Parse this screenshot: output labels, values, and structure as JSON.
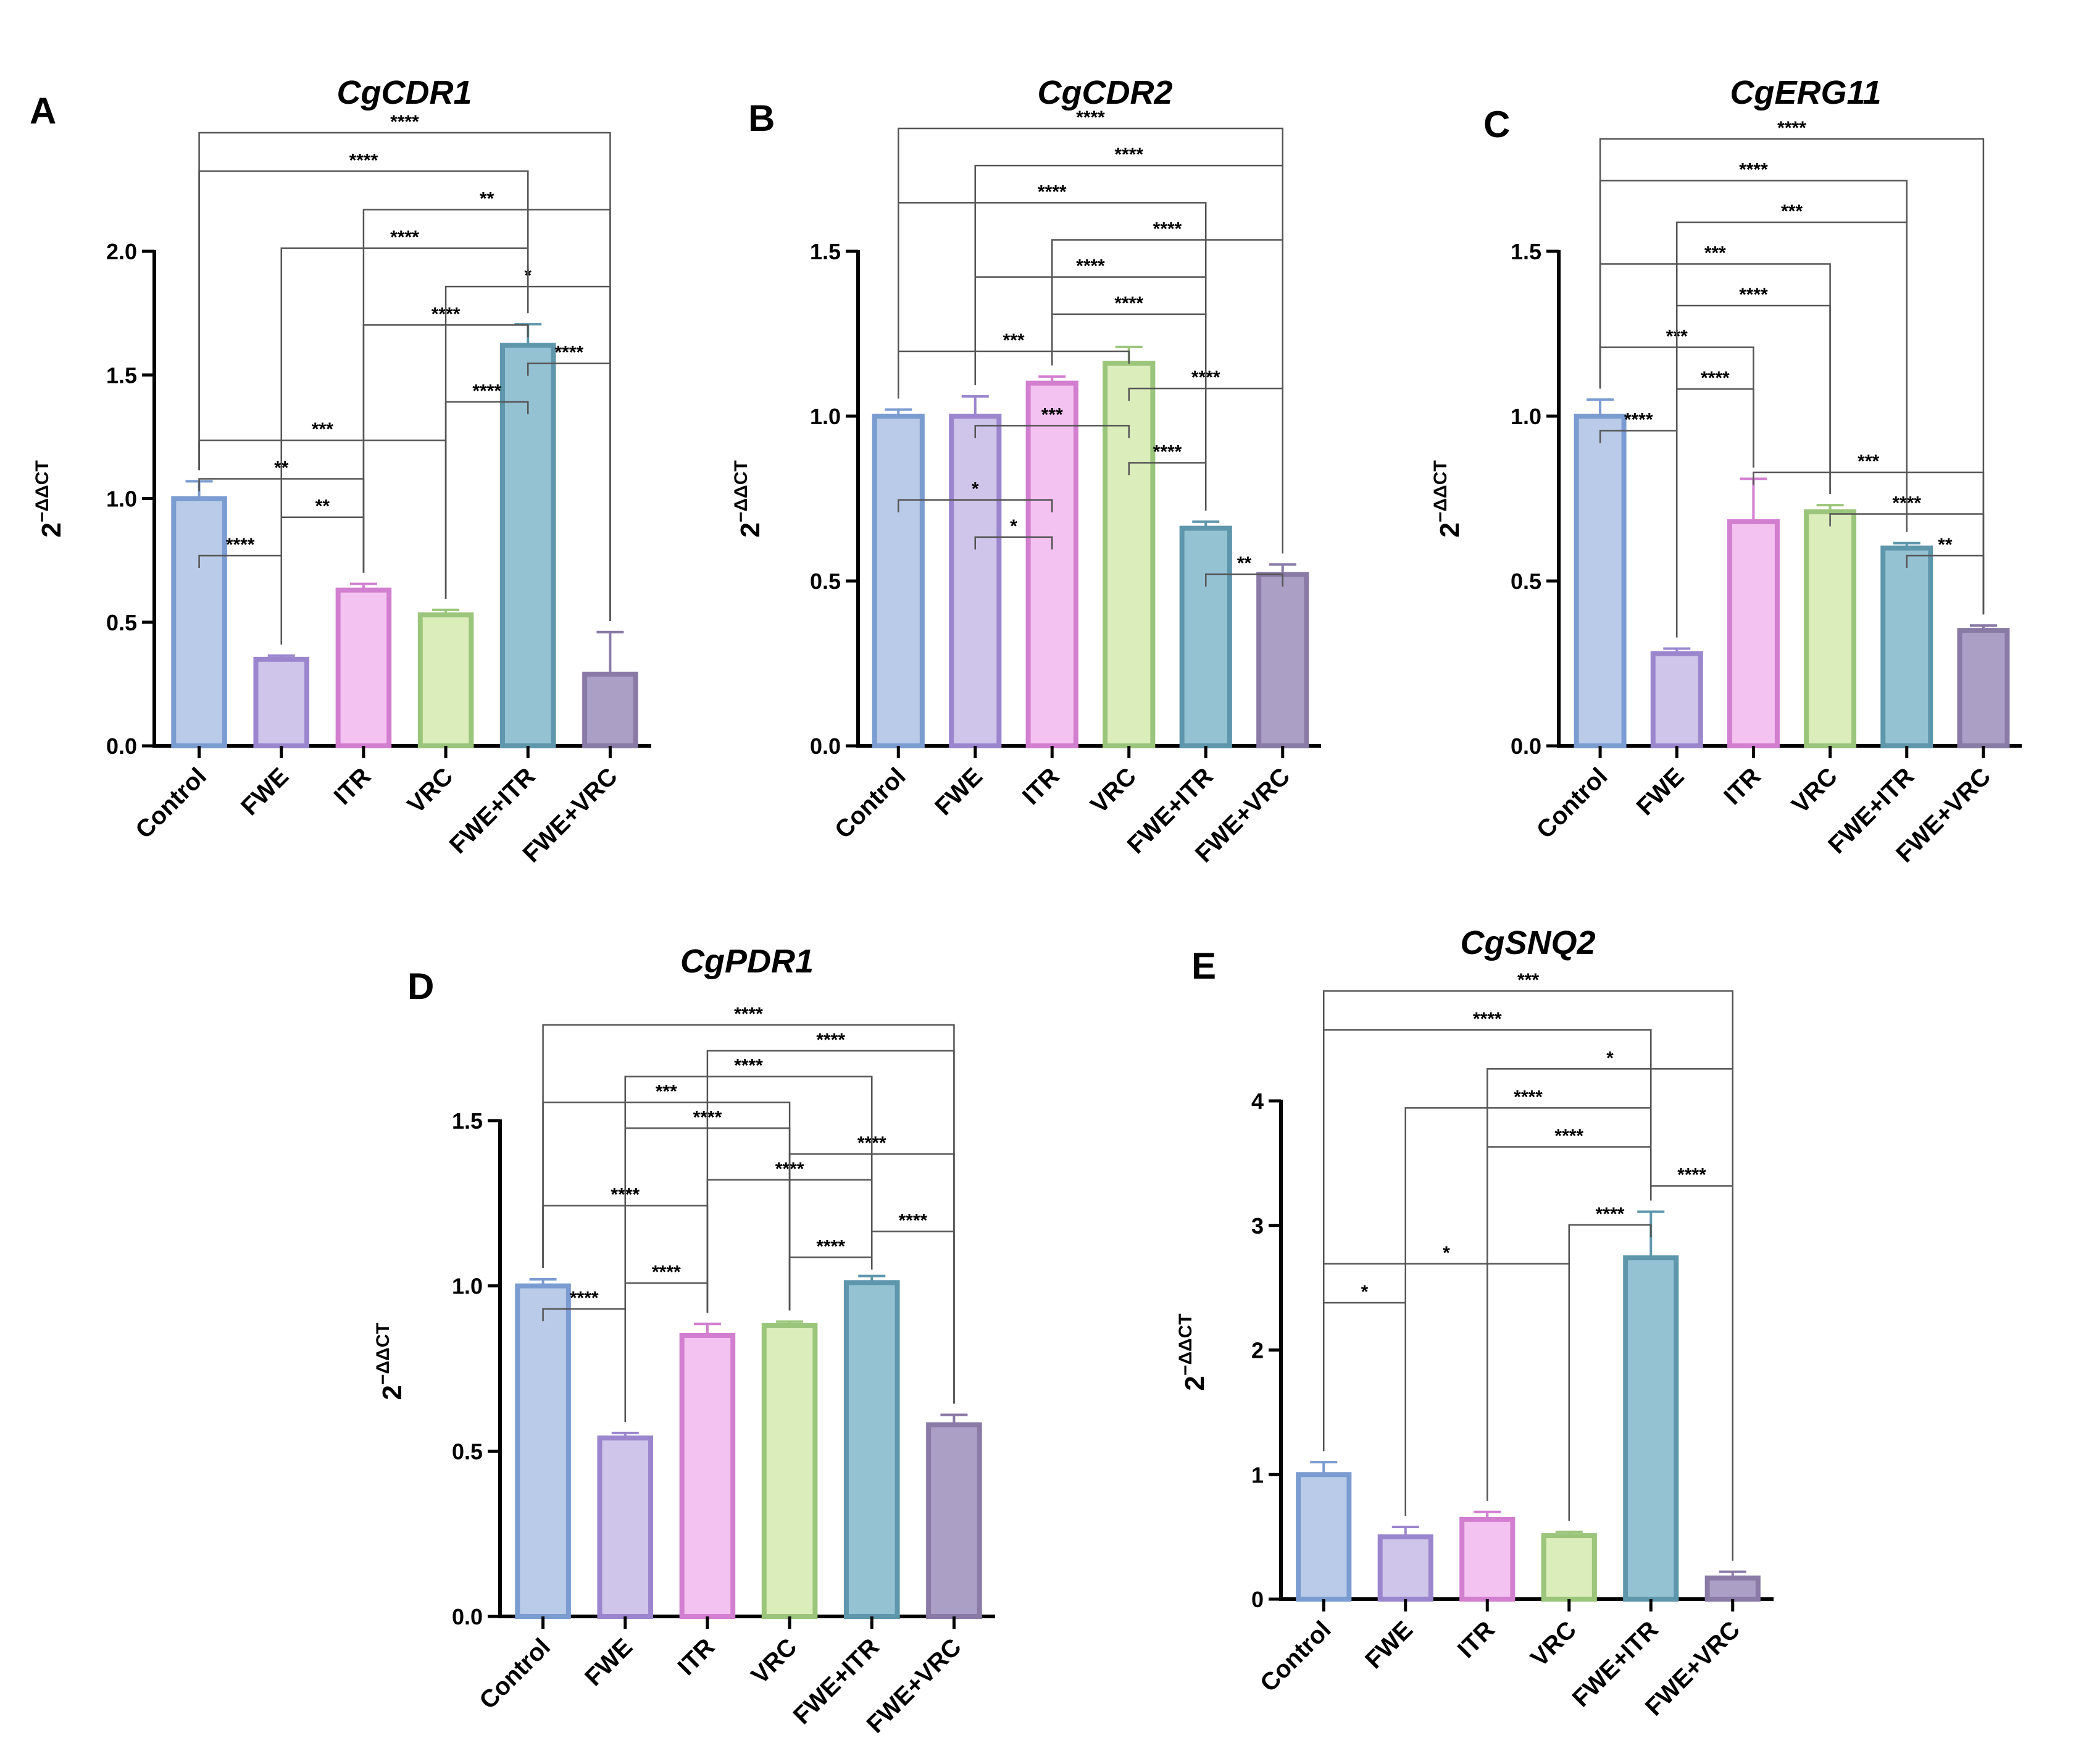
{
  "figure": {
    "description_free": true
  },
  "colors": {
    "Control": {
      "fill": "#b9cbe8",
      "stroke": "#7b9cd0"
    },
    "FWE": {
      "fill": "#cfc4ea",
      "stroke": "#9b86ce"
    },
    "ITR": {
      "fill": "#f4c2f0",
      "stroke": "#d27fd0"
    },
    "VRC": {
      "fill": "#dbedbb",
      "stroke": "#9bc57a"
    },
    "FWE+ITR": {
      "fill": "#95c2d2",
      "stroke": "#5e97ab"
    },
    "FWE+VRC": {
      "fill": "#ab9fc6",
      "stroke": "#8a7aa6"
    }
  },
  "chart_data": [
    {
      "panel": "A",
      "title": "CgCDR1",
      "type": "bar",
      "ylabel": "2",
      "ylabel_sup": "−ΔΔCT",
      "categories": [
        "Control",
        "FWE",
        "ITR",
        "VRC",
        "FWE+ITR",
        "FWE+VRC"
      ],
      "values": [
        1.0,
        0.35,
        0.63,
        0.53,
        1.62,
        0.29
      ],
      "errors": [
        0.07,
        0.015,
        0.025,
        0.02,
        0.085,
        0.17
      ],
      "ylim": [
        0,
        2.0
      ],
      "yticks": [
        "0.0",
        "0.5",
        "1.0",
        "1.5",
        "2.0"
      ],
      "yticks_values": [
        0,
        0.5,
        1.0,
        1.5,
        2.0
      ],
      "comparisons": [
        {
          "from": "Control",
          "to": "FWE",
          "label": "****"
        },
        {
          "from": "FWE",
          "to": "ITR",
          "label": "**"
        },
        {
          "from": "Control",
          "to": "ITR",
          "label": "**"
        },
        {
          "from": "Control",
          "to": "VRC",
          "label": "***"
        },
        {
          "from": "VRC",
          "to": "FWE+ITR",
          "label": "****"
        },
        {
          "from": "FWE+ITR",
          "to": "FWE+VRC",
          "label": "****"
        },
        {
          "from": "ITR",
          "to": "FWE+ITR",
          "label": "****"
        },
        {
          "from": "VRC",
          "to": "FWE+VRC",
          "label": "*"
        },
        {
          "from": "FWE",
          "to": "FWE+ITR",
          "label": "****"
        },
        {
          "from": "ITR",
          "to": "FWE+VRC",
          "label": "**"
        },
        {
          "from": "Control",
          "to": "FWE+ITR",
          "label": "****"
        },
        {
          "from": "Control",
          "to": "FWE+VRC",
          "label": "****"
        }
      ]
    },
    {
      "panel": "B",
      "title": "CgCDR2",
      "type": "bar",
      "ylabel": "2",
      "ylabel_sup": "−ΔΔCT",
      "categories": [
        "Control",
        "FWE",
        "ITR",
        "VRC",
        "FWE+ITR",
        "FWE+VRC"
      ],
      "values": [
        1.0,
        1.0,
        1.1,
        1.16,
        0.66,
        0.52
      ],
      "errors": [
        0.02,
        0.06,
        0.02,
        0.05,
        0.02,
        0.03
      ],
      "ylim": [
        0,
        1.5
      ],
      "yticks": [
        "0.0",
        "0.5",
        "1.0",
        "1.5"
      ],
      "yticks_values": [
        0,
        0.5,
        1.0,
        1.5
      ],
      "comparisons": [
        {
          "from": "FWE+ITR",
          "to": "FWE+VRC",
          "label": "**"
        },
        {
          "from": "FWE",
          "to": "ITR",
          "label": "*"
        },
        {
          "from": "Control",
          "to": "ITR",
          "label": "*"
        },
        {
          "from": "VRC",
          "to": "FWE+ITR",
          "label": "****"
        },
        {
          "from": "FWE",
          "to": "VRC",
          "label": "***"
        },
        {
          "from": "VRC",
          "to": "FWE+VRC",
          "label": "****"
        },
        {
          "from": "Control",
          "to": "VRC",
          "label": "***"
        },
        {
          "from": "ITR",
          "to": "FWE+ITR",
          "label": "****"
        },
        {
          "from": "FWE",
          "to": "FWE+ITR",
          "label": "****"
        },
        {
          "from": "ITR",
          "to": "FWE+VRC",
          "label": "****"
        },
        {
          "from": "Control",
          "to": "FWE+ITR",
          "label": "****"
        },
        {
          "from": "FWE",
          "to": "FWE+VRC",
          "label": "****"
        },
        {
          "from": "Control",
          "to": "FWE+VRC",
          "label": "****"
        }
      ]
    },
    {
      "panel": "C",
      "title": "CgERG11",
      "type": "bar",
      "ylabel": "2",
      "ylabel_sup": "−ΔΔCT",
      "categories": [
        "Control",
        "FWE",
        "ITR",
        "VRC",
        "FWE+ITR",
        "FWE+VRC"
      ],
      "values": [
        1.0,
        0.28,
        0.68,
        0.71,
        0.6,
        0.35
      ],
      "errors": [
        0.05,
        0.015,
        0.13,
        0.02,
        0.015,
        0.015
      ],
      "ylim": [
        0,
        1.5
      ],
      "yticks": [
        "0.0",
        "0.5",
        "1.0",
        "1.5"
      ],
      "yticks_values": [
        0,
        0.5,
        1.0,
        1.5
      ],
      "comparisons": [
        {
          "from": "FWE+ITR",
          "to": "FWE+VRC",
          "label": "**"
        },
        {
          "from": "VRC",
          "to": "FWE+VRC",
          "label": "****"
        },
        {
          "from": "ITR",
          "to": "FWE+VRC",
          "label": "***"
        },
        {
          "from": "Control",
          "to": "FWE",
          "label": "****"
        },
        {
          "from": "FWE",
          "to": "ITR",
          "label": "****"
        },
        {
          "from": "Control",
          "to": "ITR",
          "label": "***"
        },
        {
          "from": "FWE",
          "to": "VRC",
          "label": "****"
        },
        {
          "from": "Control",
          "to": "VRC",
          "label": "***"
        },
        {
          "from": "FWE",
          "to": "FWE+ITR",
          "label": "***"
        },
        {
          "from": "Control",
          "to": "FWE+ITR",
          "label": "****"
        },
        {
          "from": "Control",
          "to": "FWE+VRC",
          "label": "****"
        }
      ]
    },
    {
      "panel": "D",
      "title": "CgPDR1",
      "type": "bar",
      "ylabel": "2",
      "ylabel_sup": "−ΔΔCT",
      "categories": [
        "Control",
        "FWE",
        "ITR",
        "VRC",
        "FWE+ITR",
        "FWE+VRC"
      ],
      "values": [
        1.0,
        0.54,
        0.85,
        0.88,
        1.01,
        0.58
      ],
      "errors": [
        0.02,
        0.015,
        0.035,
        0.012,
        0.02,
        0.03
      ],
      "ylim": [
        0,
        1.5
      ],
      "yticks": [
        "0.0",
        "0.5",
        "1.0",
        "1.5"
      ],
      "yticks_values": [
        0,
        0.5,
        1.0,
        1.5
      ],
      "comparisons": [
        {
          "from": "Control",
          "to": "FWE",
          "label": "****"
        },
        {
          "from": "FWE",
          "to": "ITR",
          "label": "****"
        },
        {
          "from": "VRC",
          "to": "FWE+ITR",
          "label": "****"
        },
        {
          "from": "FWE+ITR",
          "to": "FWE+VRC",
          "label": "****"
        },
        {
          "from": "Control",
          "to": "ITR",
          "label": "****"
        },
        {
          "from": "ITR",
          "to": "FWE+ITR",
          "label": "****"
        },
        {
          "from": "VRC",
          "to": "FWE+VRC",
          "label": "****"
        },
        {
          "from": "FWE",
          "to": "VRC",
          "label": "****"
        },
        {
          "from": "Control",
          "to": "VRC",
          "label": "***"
        },
        {
          "from": "FWE",
          "to": "FWE+ITR",
          "label": "****"
        },
        {
          "from": "ITR",
          "to": "FWE+VRC",
          "label": "****"
        },
        {
          "from": "Control",
          "to": "FWE+VRC",
          "label": "****"
        }
      ]
    },
    {
      "panel": "E",
      "title": "CgSNQ2",
      "type": "bar",
      "ylabel": "2",
      "ylabel_sup": "−ΔΔCT",
      "categories": [
        "Control",
        "FWE",
        "ITR",
        "VRC",
        "FWE+ITR",
        "FWE+VRC"
      ],
      "values": [
        1.0,
        0.5,
        0.64,
        0.51,
        2.74,
        0.17
      ],
      "errors": [
        0.1,
        0.08,
        0.06,
        0.03,
        0.37,
        0.05
      ],
      "ylim": [
        0,
        4
      ],
      "yticks": [
        "0",
        "1",
        "2",
        "3",
        "4"
      ],
      "yticks_values": [
        0,
        1,
        2,
        3,
        4
      ],
      "comparisons": [
        {
          "from": "Control",
          "to": "FWE",
          "label": "*"
        },
        {
          "from": "Control",
          "to": "VRC",
          "label": "*"
        },
        {
          "from": "VRC",
          "to": "FWE+ITR",
          "label": "****"
        },
        {
          "from": "FWE+ITR",
          "to": "FWE+VRC",
          "label": "****"
        },
        {
          "from": "ITR",
          "to": "FWE+ITR",
          "label": "****"
        },
        {
          "from": "FWE",
          "to": "FWE+ITR",
          "label": "****"
        },
        {
          "from": "ITR",
          "to": "FWE+VRC",
          "label": "*"
        },
        {
          "from": "Control",
          "to": "FWE+ITR",
          "label": "****"
        },
        {
          "from": "Control",
          "to": "FWE+VRC",
          "label": "***"
        }
      ]
    }
  ]
}
